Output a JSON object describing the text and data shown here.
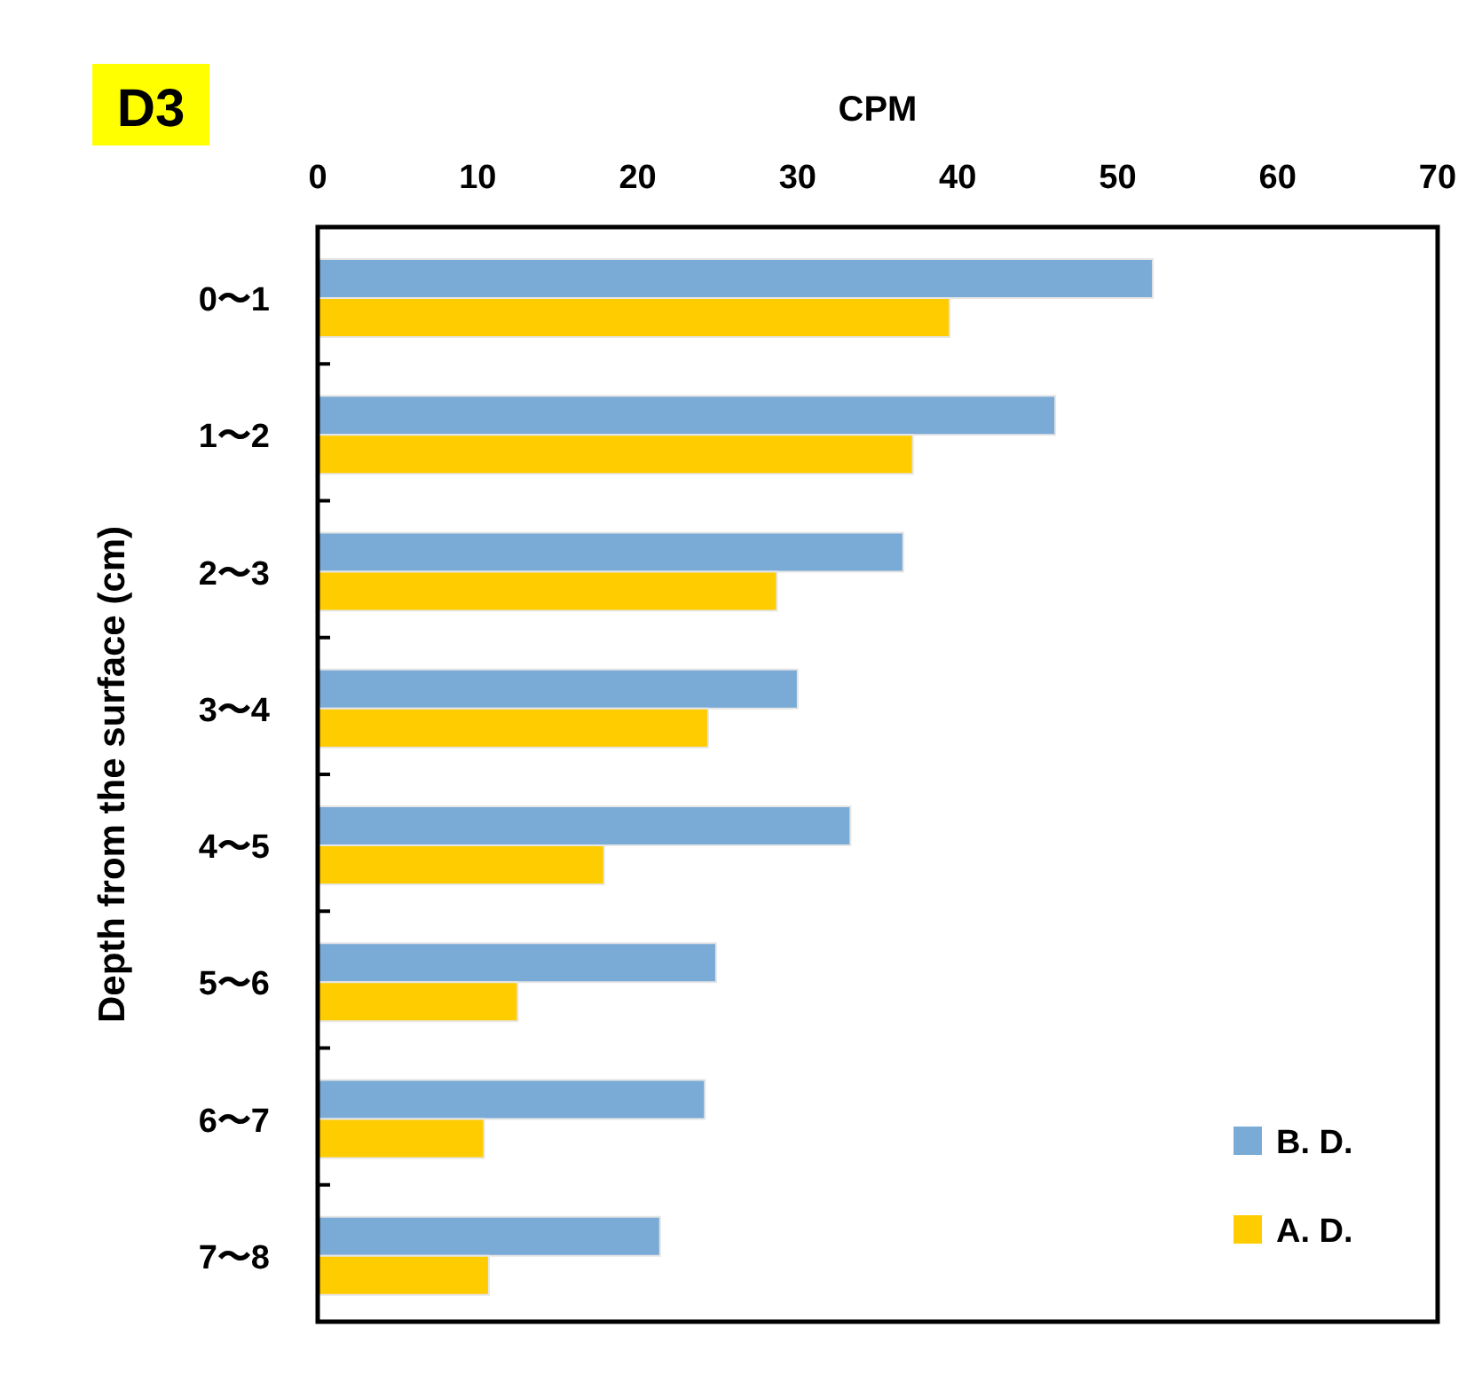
{
  "chart_data": {
    "type": "bar",
    "orientation": "horizontal",
    "title": "D3",
    "xlabel": "CPM",
    "ylabel": "Depth from the surface (cm)",
    "categories": [
      "0〜1",
      "1〜2",
      "2〜3",
      "3〜4",
      "4〜5",
      "5〜6",
      "6〜7",
      "7〜8"
    ],
    "series": [
      {
        "name": "B. D.",
        "color": "#7aaad6",
        "values": [
          52.2,
          46.1,
          36.6,
          30.0,
          33.3,
          24.9,
          24.2,
          21.4
        ]
      },
      {
        "name": "A. D.",
        "color": "#ffcc00",
        "values": [
          39.5,
          37.2,
          28.7,
          24.4,
          17.9,
          12.5,
          10.4,
          10.7
        ]
      }
    ],
    "xlim": [
      0,
      70
    ],
    "xticks": [
      0,
      10,
      20,
      30,
      40,
      50,
      60,
      70
    ],
    "legend": "bottom right",
    "grid": false
  }
}
